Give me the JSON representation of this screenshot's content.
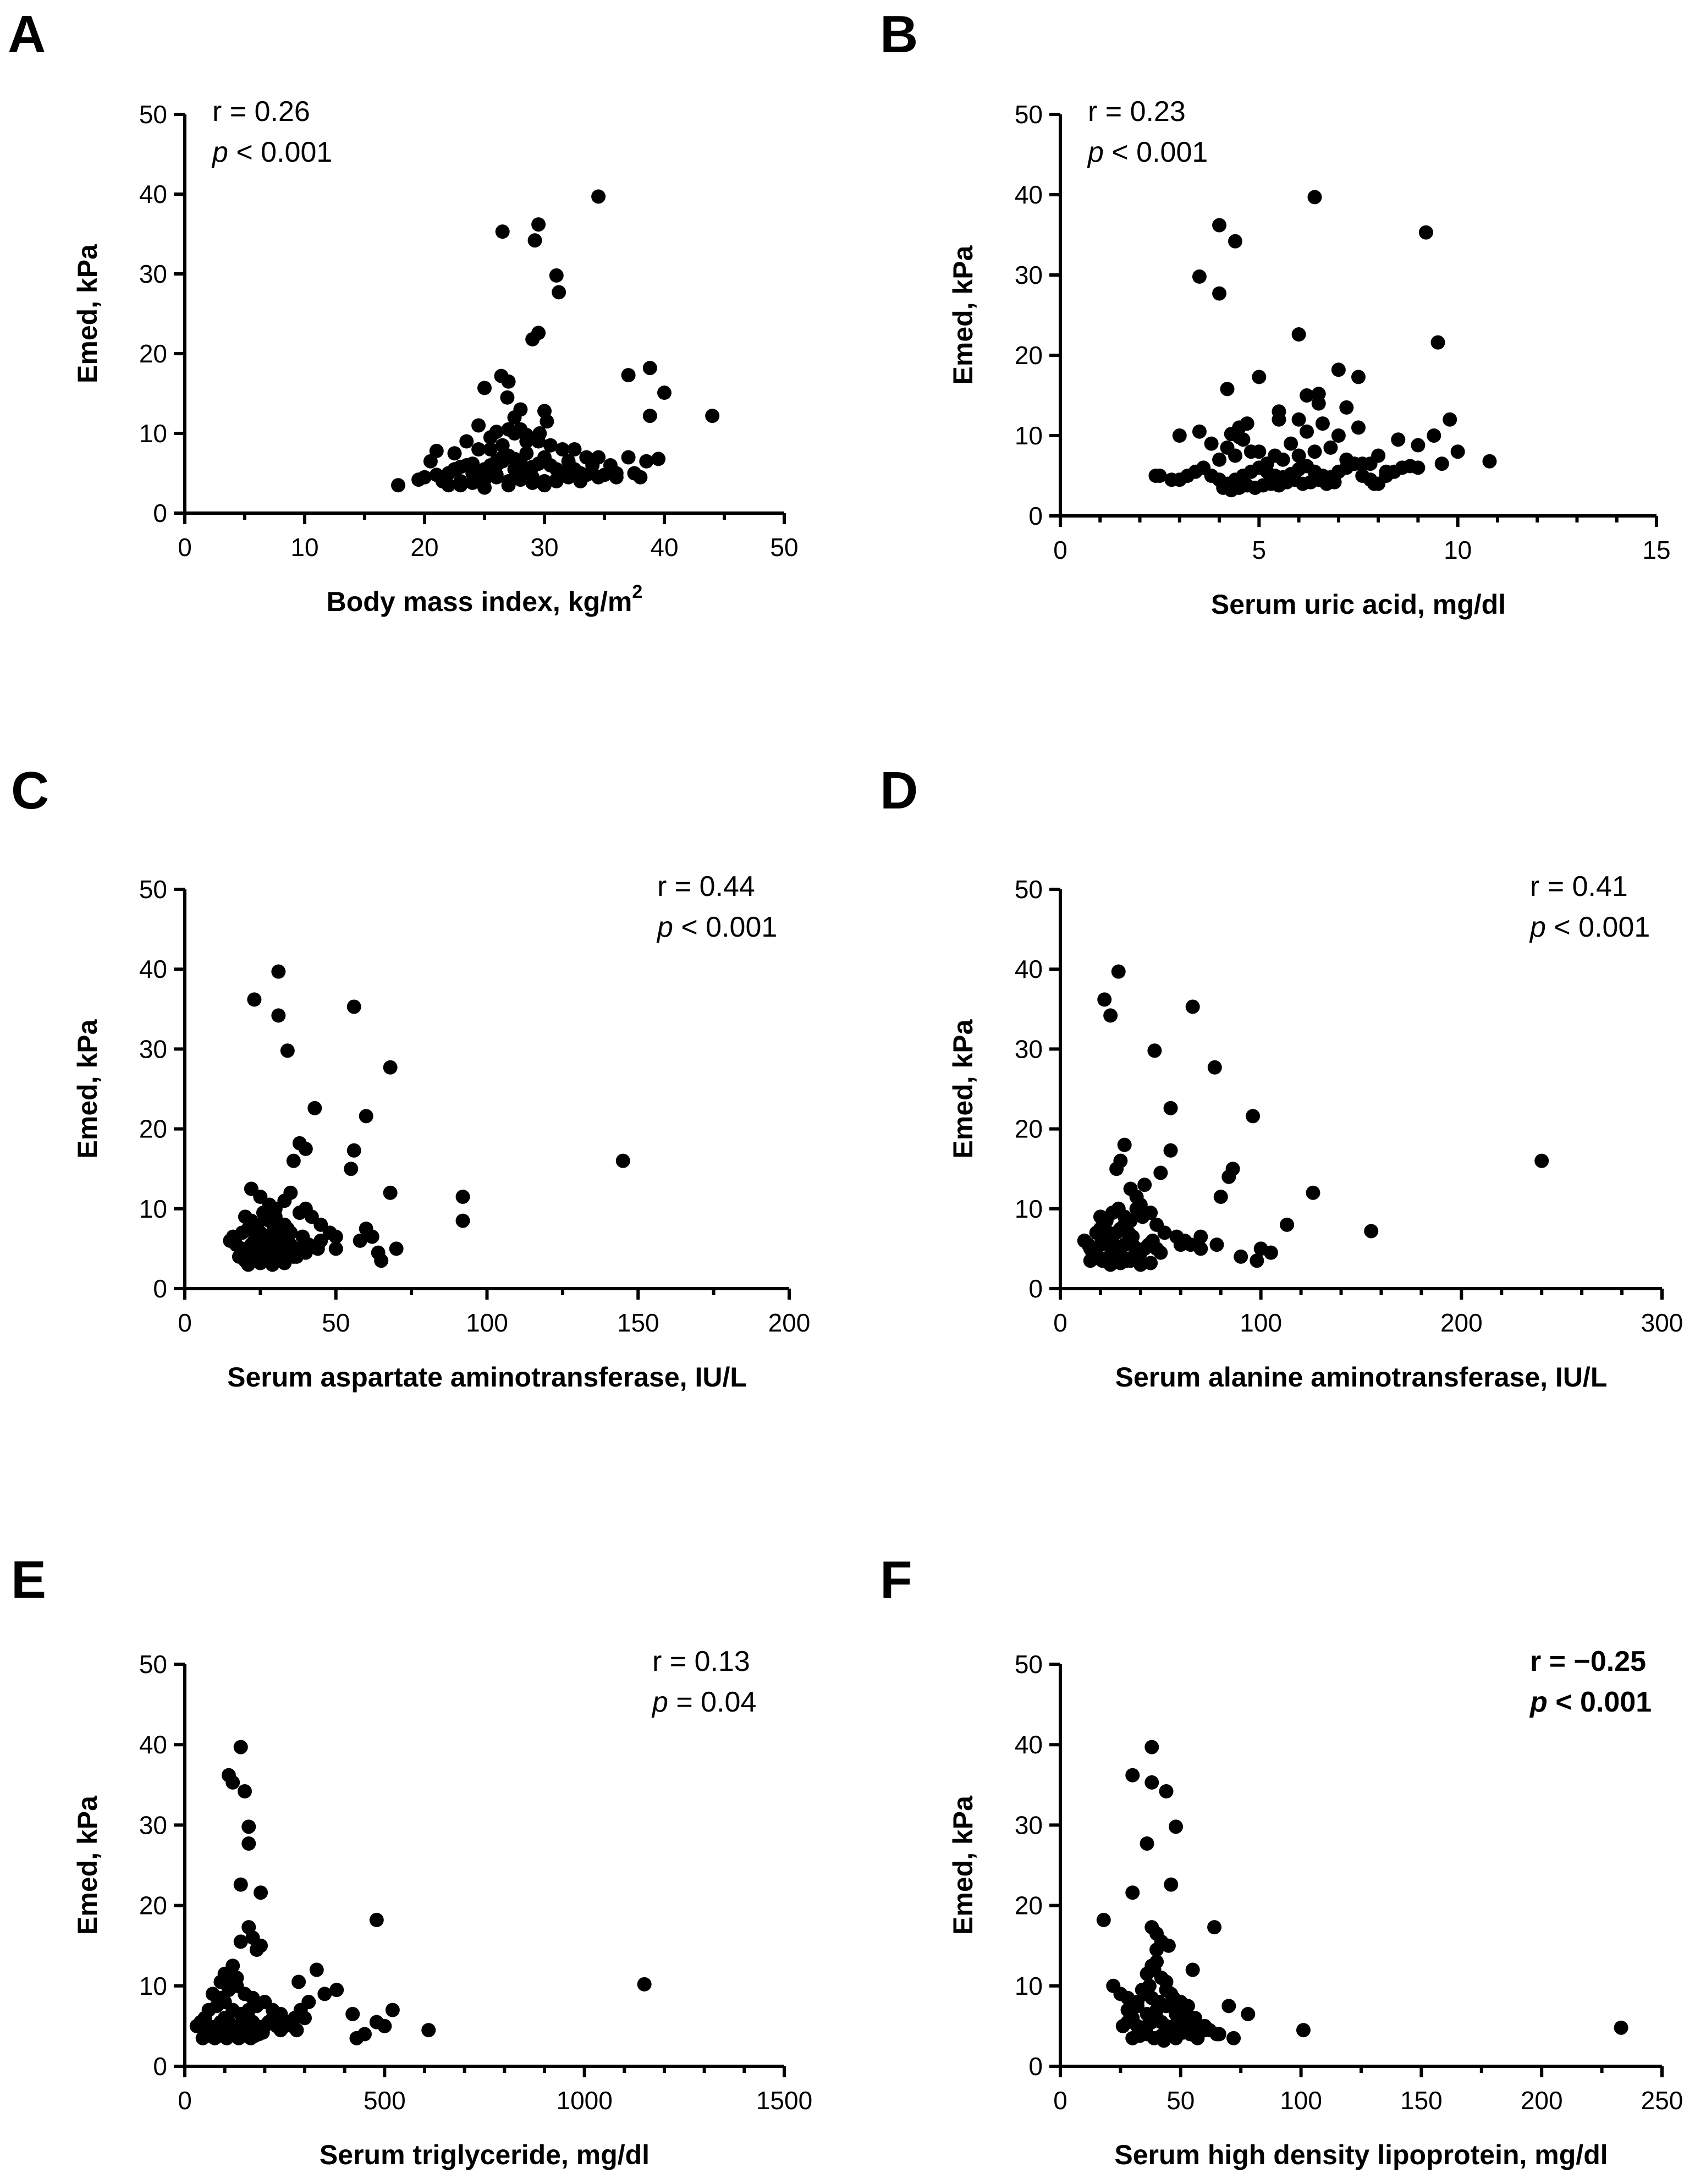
{
  "chart_data": [
    {
      "panel": "A",
      "type": "scatter",
      "xlabel": "Body mass index, kg/m",
      "xlabel_superscript": "2",
      "ylabel": "Emed, kPa",
      "xlim": [
        0,
        50
      ],
      "ylim": [
        0,
        50
      ],
      "xticks": [
        "0",
        "10",
        "20",
        "30",
        "40",
        "50"
      ],
      "yticks": [
        "0",
        "10",
        "20",
        "30",
        "40",
        "50"
      ],
      "stats": {
        "r": "r = 0.26",
        "p_symbol": "p",
        "p_rest": " < 0.001",
        "bold": false,
        "position": "top-left"
      },
      "x": [
        34.5,
        26.5,
        29.5,
        29.2,
        31.0,
        31.2,
        29.5,
        29.0,
        26.4,
        25.0,
        37.0,
        38.8,
        40.0,
        38.8,
        44.0,
        27.0,
        26.9,
        28.0,
        24.5,
        27.5,
        28.0,
        30.2,
        30.0,
        28.5,
        26.0,
        27.0,
        29.6,
        37.0,
        39.5,
        38.5,
        37.5,
        17.8,
        20.0,
        21.0,
        22.0,
        22.5,
        23.0,
        23.5,
        24.0,
        24.5,
        25.0,
        25.5,
        26.0,
        26.5,
        27.0,
        27.5,
        28.0,
        28.5,
        29.0,
        29.5,
        30.0,
        30.5,
        31.0,
        31.5,
        32.0,
        32.5,
        33.0,
        33.5,
        34.0,
        34.5,
        35.0,
        36.0,
        21.5,
        22.0,
        23.0,
        24.0,
        25.0,
        26.0,
        27.0,
        28.0,
        29.0,
        30.0,
        31.0,
        32.0,
        33.0,
        20.5,
        22.5,
        24.5,
        26.5,
        28.5,
        30.5,
        32.5,
        34.5,
        21.0,
        23.5,
        25.5,
        27.5,
        29.5,
        31.5,
        33.5,
        35.5,
        23.0,
        25.0,
        27.0,
        29.0,
        31.0,
        24.0,
        26.0,
        28.0,
        30.0,
        25.5,
        26.5,
        27.5,
        28.5,
        19.5,
        22.0,
        24.0,
        26.0,
        28.0,
        30.0,
        32.0,
        34.0,
        36.0,
        38.0
      ],
      "y": [
        39.7,
        35.3,
        36.2,
        34.2,
        29.8,
        27.7,
        22.6,
        21.8,
        17.2,
        15.7,
        17.3,
        18.2,
        15.1,
        12.2,
        12.2,
        16.5,
        14.5,
        13.0,
        11.0,
        12.0,
        10.5,
        11.5,
        12.8,
        9.8,
        10.2,
        10.5,
        10.0,
        7.0,
        6.8,
        6.5,
        5.0,
        3.5,
        4.5,
        4.8,
        5.0,
        5.5,
        5.8,
        6.0,
        6.2,
        5.0,
        5.5,
        6.0,
        6.5,
        7.0,
        7.2,
        6.8,
        6.0,
        5.5,
        5.8,
        6.2,
        6.5,
        6.0,
        5.5,
        5.0,
        5.2,
        5.5,
        5.0,
        4.8,
        5.0,
        4.5,
        4.8,
        4.5,
        4.0,
        3.5,
        4.0,
        3.8,
        4.2,
        4.5,
        4.0,
        4.2,
        4.5,
        4.0,
        4.2,
        4.5,
        4.0,
        6.5,
        7.5,
        8.0,
        8.5,
        9.0,
        8.5,
        8.0,
        7.0,
        7.8,
        9.0,
        9.5,
        10.0,
        9.0,
        8.0,
        7.0,
        6.0,
        3.5,
        3.2,
        3.5,
        3.8,
        4.0,
        5.0,
        4.8,
        4.5,
        3.5,
        8.0,
        6.5,
        5.5,
        7.5,
        4.2,
        5.0,
        5.5,
        6.0,
        6.5,
        7.0,
        6.5,
        6.0,
        5.0,
        4.5
      ]
    },
    {
      "panel": "B",
      "type": "scatter",
      "xlabel": "Serum uric acid, mg/dl",
      "xlabel_superscript": "",
      "ylabel": "Emed, kPa",
      "xlim": [
        0,
        15
      ],
      "ylim": [
        0,
        50
      ],
      "xticks": [
        "0",
        "5",
        "10",
        "15"
      ],
      "yticks": [
        "0",
        "10",
        "20",
        "30",
        "40",
        "50"
      ],
      "stats": {
        "r": "r = 0.23",
        "p_symbol": "p",
        "p_rest": " < 0.001",
        "bold": false,
        "position": "top-left"
      },
      "x": [
        6.4,
        4.0,
        4.4,
        9.2,
        3.5,
        4.0,
        6.0,
        9.5,
        4.2,
        5.0,
        7.0,
        7.5,
        6.2,
        6.5,
        7.2,
        5.5,
        6.0,
        4.5,
        3.5,
        3.0,
        2.5,
        2.8,
        9.8,
        9.4,
        10.0,
        10.8,
        8.5,
        9.0,
        8.0,
        7.8,
        3.0,
        3.2,
        3.4,
        3.6,
        3.8,
        4.0,
        4.2,
        4.4,
        4.6,
        4.8,
        5.0,
        5.2,
        5.4,
        5.6,
        5.8,
        6.0,
        6.2,
        6.4,
        6.6,
        6.8,
        7.0,
        7.2,
        7.4,
        7.6,
        7.8,
        8.0,
        8.2,
        8.4,
        8.6,
        8.8,
        4.1,
        4.3,
        4.5,
        4.7,
        4.9,
        5.1,
        5.3,
        5.5,
        5.7,
        5.9,
        6.1,
        6.3,
        6.5,
        6.7,
        6.9,
        4.0,
        4.4,
        4.8,
        5.2,
        5.6,
        6.0,
        6.4,
        6.8,
        7.2,
        7.6,
        3.8,
        4.2,
        4.6,
        5.0,
        5.4,
        5.8,
        6.2,
        6.6,
        7.0,
        2.4,
        9.0,
        9.6,
        8.2,
        7.9,
        4.3,
        4.5,
        4.7,
        5.5,
        6.5,
        7.5
      ],
      "y": [
        39.7,
        36.2,
        34.2,
        35.3,
        29.8,
        27.7,
        22.6,
        21.6,
        15.8,
        17.3,
        18.2,
        17.3,
        15.0,
        15.2,
        13.5,
        13.0,
        12.0,
        11.0,
        10.5,
        10.0,
        5.0,
        4.5,
        12.0,
        10.0,
        8.0,
        6.8,
        9.5,
        8.8,
        7.5,
        6.5,
        4.5,
        5.0,
        5.5,
        6.0,
        5.0,
        4.5,
        4.0,
        4.5,
        5.0,
        5.5,
        6.0,
        5.5,
        5.0,
        4.8,
        5.2,
        5.8,
        6.2,
        5.5,
        5.0,
        4.8,
        5.5,
        6.0,
        6.5,
        5.0,
        4.5,
        4.0,
        5.0,
        5.5,
        6.0,
        6.2,
        3.5,
        3.2,
        3.5,
        3.8,
        3.5,
        3.8,
        4.0,
        3.8,
        4.2,
        4.5,
        4.0,
        4.2,
        4.5,
        4.0,
        4.2,
        7.0,
        7.5,
        8.0,
        6.5,
        7.0,
        7.5,
        8.0,
        8.5,
        7.0,
        6.5,
        9.0,
        8.5,
        9.5,
        8.0,
        7.5,
        9.0,
        10.5,
        11.5,
        10.0,
        5.0,
        6.0,
        6.5,
        5.5,
        4.0,
        10.2,
        9.8,
        11.5,
        12.0,
        14.0,
        11.0
      ]
    },
    {
      "panel": "C",
      "type": "scatter",
      "xlabel": "Serum aspartate aminotransferase, IU/L",
      "xlabel_superscript": "",
      "ylabel": "Emed, kPa",
      "xlim": [
        0,
        200
      ],
      "ylim": [
        0,
        50
      ],
      "xticks": [
        "0",
        "50",
        "100",
        "150",
        "200"
      ],
      "yticks": [
        "0",
        "10",
        "20",
        "30",
        "40",
        "50"
      ],
      "stats": {
        "r": "r = 0.44",
        "p_symbol": "p",
        "p_rest": " < 0.001",
        "bold": false,
        "position": "top-right"
      },
      "x": [
        31,
        23,
        31,
        34,
        56,
        68,
        60,
        43,
        38,
        56,
        55,
        40,
        36,
        145,
        92,
        92,
        68,
        70,
        64,
        65,
        62,
        58,
        60,
        22,
        25,
        28,
        30,
        33,
        35,
        38,
        40,
        42,
        45,
        48,
        50,
        15,
        17,
        19,
        20,
        21,
        22,
        23,
        24,
        25,
        26,
        27,
        28,
        29,
        30,
        31,
        32,
        33,
        34,
        35,
        36,
        37,
        38,
        18,
        20,
        22,
        24,
        26,
        28,
        30,
        32,
        34,
        36,
        40,
        44,
        16,
        19,
        21,
        23,
        25,
        27,
        29,
        31,
        33,
        35,
        39,
        20,
        22,
        24,
        26,
        28,
        30,
        32,
        34,
        21,
        25,
        29,
        33,
        37,
        41,
        45,
        50,
        23,
        27,
        31,
        35
      ],
      "y": [
        39.7,
        36.2,
        34.2,
        29.8,
        35.3,
        27.7,
        21.6,
        22.6,
        18.2,
        17.3,
        15.0,
        17.5,
        16.0,
        16.0,
        11.5,
        8.5,
        12.0,
        5.0,
        4.5,
        3.5,
        6.5,
        6.0,
        7.5,
        12.5,
        11.5,
        10.5,
        10.0,
        11.0,
        12.0,
        9.5,
        10.0,
        9.0,
        8.0,
        7.0,
        6.5,
        6.0,
        5.5,
        5.0,
        4.5,
        5.0,
        5.5,
        6.0,
        5.0,
        4.5,
        5.0,
        5.5,
        6.0,
        5.5,
        5.0,
        4.8,
        5.2,
        5.5,
        6.0,
        5.5,
        5.0,
        4.5,
        5.0,
        4.0,
        3.5,
        3.8,
        4.0,
        3.5,
        3.8,
        4.0,
        3.5,
        4.2,
        4.0,
        4.5,
        5.0,
        6.5,
        7.0,
        7.5,
        8.0,
        7.0,
        6.5,
        7.0,
        7.5,
        8.0,
        7.0,
        6.5,
        9.0,
        8.5,
        8.0,
        9.5,
        8.5,
        9.0,
        8.0,
        7.5,
        3.0,
        3.2,
        3.0,
        3.2,
        4.0,
        5.5,
        6.0,
        5.0,
        6.0,
        6.2,
        6.5,
        7.0
      ]
    },
    {
      "panel": "D",
      "type": "scatter",
      "xlabel": "Serum alanine aminotransferase, IU/L",
      "xlabel_superscript": "",
      "ylabel": "Emed, kPa",
      "xlim": [
        0,
        300
      ],
      "ylim": [
        0,
        50
      ],
      "xticks": [
        "0",
        "100",
        "200",
        "300"
      ],
      "yticks": [
        "0",
        "10",
        "20",
        "30",
        "40",
        "50"
      ],
      "stats": {
        "r": "r = 0.41",
        "p_symbol": "p",
        "p_rest": " < 0.001",
        "bold": false,
        "position": "top-right"
      },
      "x": [
        29,
        22,
        25,
        66,
        47,
        77,
        55,
        96,
        240,
        155,
        126,
        113,
        100,
        105,
        86,
        84,
        80,
        55,
        50,
        42,
        30,
        28,
        32,
        35,
        38,
        40,
        45,
        48,
        52,
        58,
        62,
        65,
        70,
        12,
        14,
        15,
        16,
        18,
        20,
        22,
        24,
        26,
        28,
        30,
        32,
        34,
        36,
        38,
        40,
        42,
        44,
        46,
        48,
        50,
        15,
        17,
        19,
        21,
        23,
        25,
        27,
        29,
        31,
        33,
        35,
        37,
        39,
        18,
        20,
        22,
        24,
        26,
        28,
        30,
        32,
        34,
        36,
        20,
        23,
        26,
        29,
        32,
        35,
        38,
        41,
        25,
        30,
        35,
        40,
        45,
        60,
        70,
        78,
        90,
        98
      ],
      "y": [
        39.7,
        36.2,
        34.2,
        35.3,
        29.8,
        27.7,
        22.6,
        21.6,
        16.0,
        7.2,
        12.0,
        8.0,
        5.0,
        4.5,
        15.0,
        14.0,
        11.5,
        17.3,
        14.5,
        13.0,
        16.0,
        15.0,
        18.0,
        12.5,
        11.5,
        10.5,
        9.5,
        8.0,
        7.0,
        6.5,
        6.0,
        5.5,
        5.0,
        6.0,
        5.5,
        5.0,
        4.5,
        5.0,
        5.5,
        6.0,
        5.5,
        5.0,
        4.8,
        5.2,
        5.5,
        6.0,
        5.5,
        5.0,
        4.5,
        5.0,
        5.5,
        6.0,
        5.0,
        4.5,
        3.5,
        3.8,
        4.0,
        3.5,
        3.8,
        4.0,
        3.5,
        4.2,
        4.0,
        3.5,
        3.8,
        4.0,
        3.5,
        7.0,
        7.5,
        8.0,
        7.0,
        6.5,
        7.0,
        7.5,
        8.0,
        7.0,
        6.5,
        9.0,
        8.5,
        9.5,
        10.0,
        9.0,
        8.5,
        10.0,
        9.0,
        3.0,
        3.2,
        3.5,
        3.0,
        3.2,
        5.5,
        6.5,
        5.5,
        4.0,
        3.5
      ]
    },
    {
      "panel": "E",
      "type": "scatter",
      "xlabel": "Serum triglyceride, mg/dl",
      "xlabel_superscript": "",
      "ylabel": "Emed, kPa",
      "xlim": [
        0,
        1500
      ],
      "ylim": [
        0,
        50
      ],
      "xticks": [
        "0",
        "500",
        "1000",
        "1500"
      ],
      "yticks": [
        "0",
        "10",
        "20",
        "30",
        "40",
        "50"
      ],
      "stats": {
        "r": "r = 0.13",
        "p_symbol": "p",
        "p_rest": " = 0.04",
        "bold": false,
        "position": "top-right"
      },
      "x": [
        140,
        110,
        120,
        150,
        160,
        160,
        140,
        190,
        480,
        1150,
        330,
        285,
        275,
        520,
        500,
        480,
        450,
        430,
        420,
        610,
        190,
        170,
        180,
        160,
        140,
        120,
        100,
        90,
        110,
        130,
        30,
        40,
        50,
        60,
        70,
        80,
        90,
        100,
        110,
        120,
        130,
        140,
        150,
        160,
        170,
        180,
        190,
        200,
        210,
        220,
        230,
        240,
        250,
        260,
        270,
        280,
        45,
        55,
        65,
        75,
        85,
        95,
        105,
        115,
        125,
        135,
        145,
        155,
        165,
        175,
        185,
        195,
        60,
        80,
        100,
        120,
        140,
        160,
        180,
        200,
        220,
        240,
        70,
        90,
        110,
        130,
        150,
        170,
        350,
        310,
        300,
        380,
        290
      ],
      "y": [
        39.7,
        36.2,
        35.3,
        34.2,
        29.8,
        27.7,
        22.6,
        21.6,
        18.2,
        10.2,
        12.0,
        10.5,
        6.0,
        7.0,
        5.0,
        5.5,
        4.0,
        3.5,
        6.5,
        4.5,
        15.0,
        16.0,
        14.5,
        17.3,
        15.5,
        12.5,
        11.5,
        10.5,
        10.0,
        11.0,
        5.0,
        5.5,
        6.0,
        5.0,
        4.5,
        5.0,
        5.5,
        6.0,
        5.5,
        5.0,
        4.8,
        5.2,
        5.5,
        6.0,
        5.5,
        5.0,
        4.5,
        5.0,
        5.5,
        6.0,
        5.0,
        4.5,
        5.0,
        5.5,
        5.0,
        4.5,
        3.5,
        3.8,
        4.0,
        3.5,
        3.8,
        4.0,
        3.5,
        4.2,
        4.0,
        3.5,
        3.8,
        4.0,
        3.5,
        3.8,
        4.0,
        4.2,
        7.0,
        7.5,
        8.0,
        7.0,
        6.5,
        7.0,
        7.5,
        8.0,
        7.0,
        6.5,
        9.0,
        8.5,
        9.5,
        10.0,
        9.0,
        8.5,
        9.0,
        8.0,
        6.0,
        9.5,
        7.0
      ]
    },
    {
      "panel": "F",
      "type": "scatter",
      "xlabel": "Serum high density lipoprotein, mg/dl",
      "xlabel_superscript": "",
      "ylabel": "Emed, kPa",
      "xlim": [
        0,
        250
      ],
      "ylim": [
        0,
        50
      ],
      "xticks": [
        "0",
        "50",
        "100",
        "150",
        "200",
        "250"
      ],
      "yticks": [
        "0",
        "10",
        "20",
        "30",
        "40",
        "50"
      ],
      "stats": {
        "r": "r = −0.25",
        "p_symbol": "p",
        "p_rest": " < 0.001",
        "bold": true,
        "position": "top-right"
      },
      "x": [
        38,
        30,
        38,
        44,
        48,
        36,
        46,
        30,
        18,
        38,
        40,
        45,
        64,
        55,
        101,
        233,
        78,
        70,
        72,
        65,
        60,
        22,
        25,
        28,
        30,
        32,
        34,
        36,
        38,
        40,
        42,
        44,
        46,
        48,
        50,
        52,
        54,
        56,
        58,
        60,
        26,
        28,
        30,
        32,
        34,
        36,
        38,
        40,
        42,
        44,
        46,
        48,
        50,
        52,
        54,
        56,
        62,
        66,
        30,
        33,
        36,
        39,
        42,
        45,
        48,
        51,
        54,
        57,
        28,
        32,
        36,
        40,
        44,
        48,
        52,
        56,
        35,
        38,
        41,
        44,
        47,
        50,
        53,
        40,
        42,
        37,
        39,
        43
      ],
      "y": [
        39.7,
        36.2,
        35.3,
        34.2,
        29.8,
        27.7,
        22.6,
        21.6,
        18.2,
        17.3,
        16.5,
        15.0,
        17.3,
        12.0,
        4.5,
        4.8,
        6.5,
        7.5,
        3.5,
        4.0,
        5.0,
        10.0,
        9.0,
        8.5,
        7.5,
        8.0,
        9.5,
        11.5,
        12.5,
        13.0,
        11.0,
        10.5,
        9.0,
        8.0,
        7.0,
        6.5,
        6.0,
        5.5,
        5.0,
        4.5,
        5.0,
        5.5,
        6.0,
        5.0,
        4.5,
        5.0,
        5.5,
        6.0,
        5.5,
        5.0,
        4.8,
        5.2,
        5.5,
        6.0,
        5.5,
        5.0,
        4.5,
        4.0,
        3.5,
        3.8,
        4.0,
        3.5,
        3.8,
        4.0,
        3.5,
        4.2,
        4.0,
        3.5,
        7.0,
        7.5,
        6.5,
        7.0,
        7.5,
        6.5,
        7.0,
        6.0,
        9.0,
        8.5,
        8.0,
        9.5,
        8.5,
        8.0,
        7.5,
        14.5,
        15.5,
        10.0,
        12.0,
        3.2
      ]
    }
  ]
}
